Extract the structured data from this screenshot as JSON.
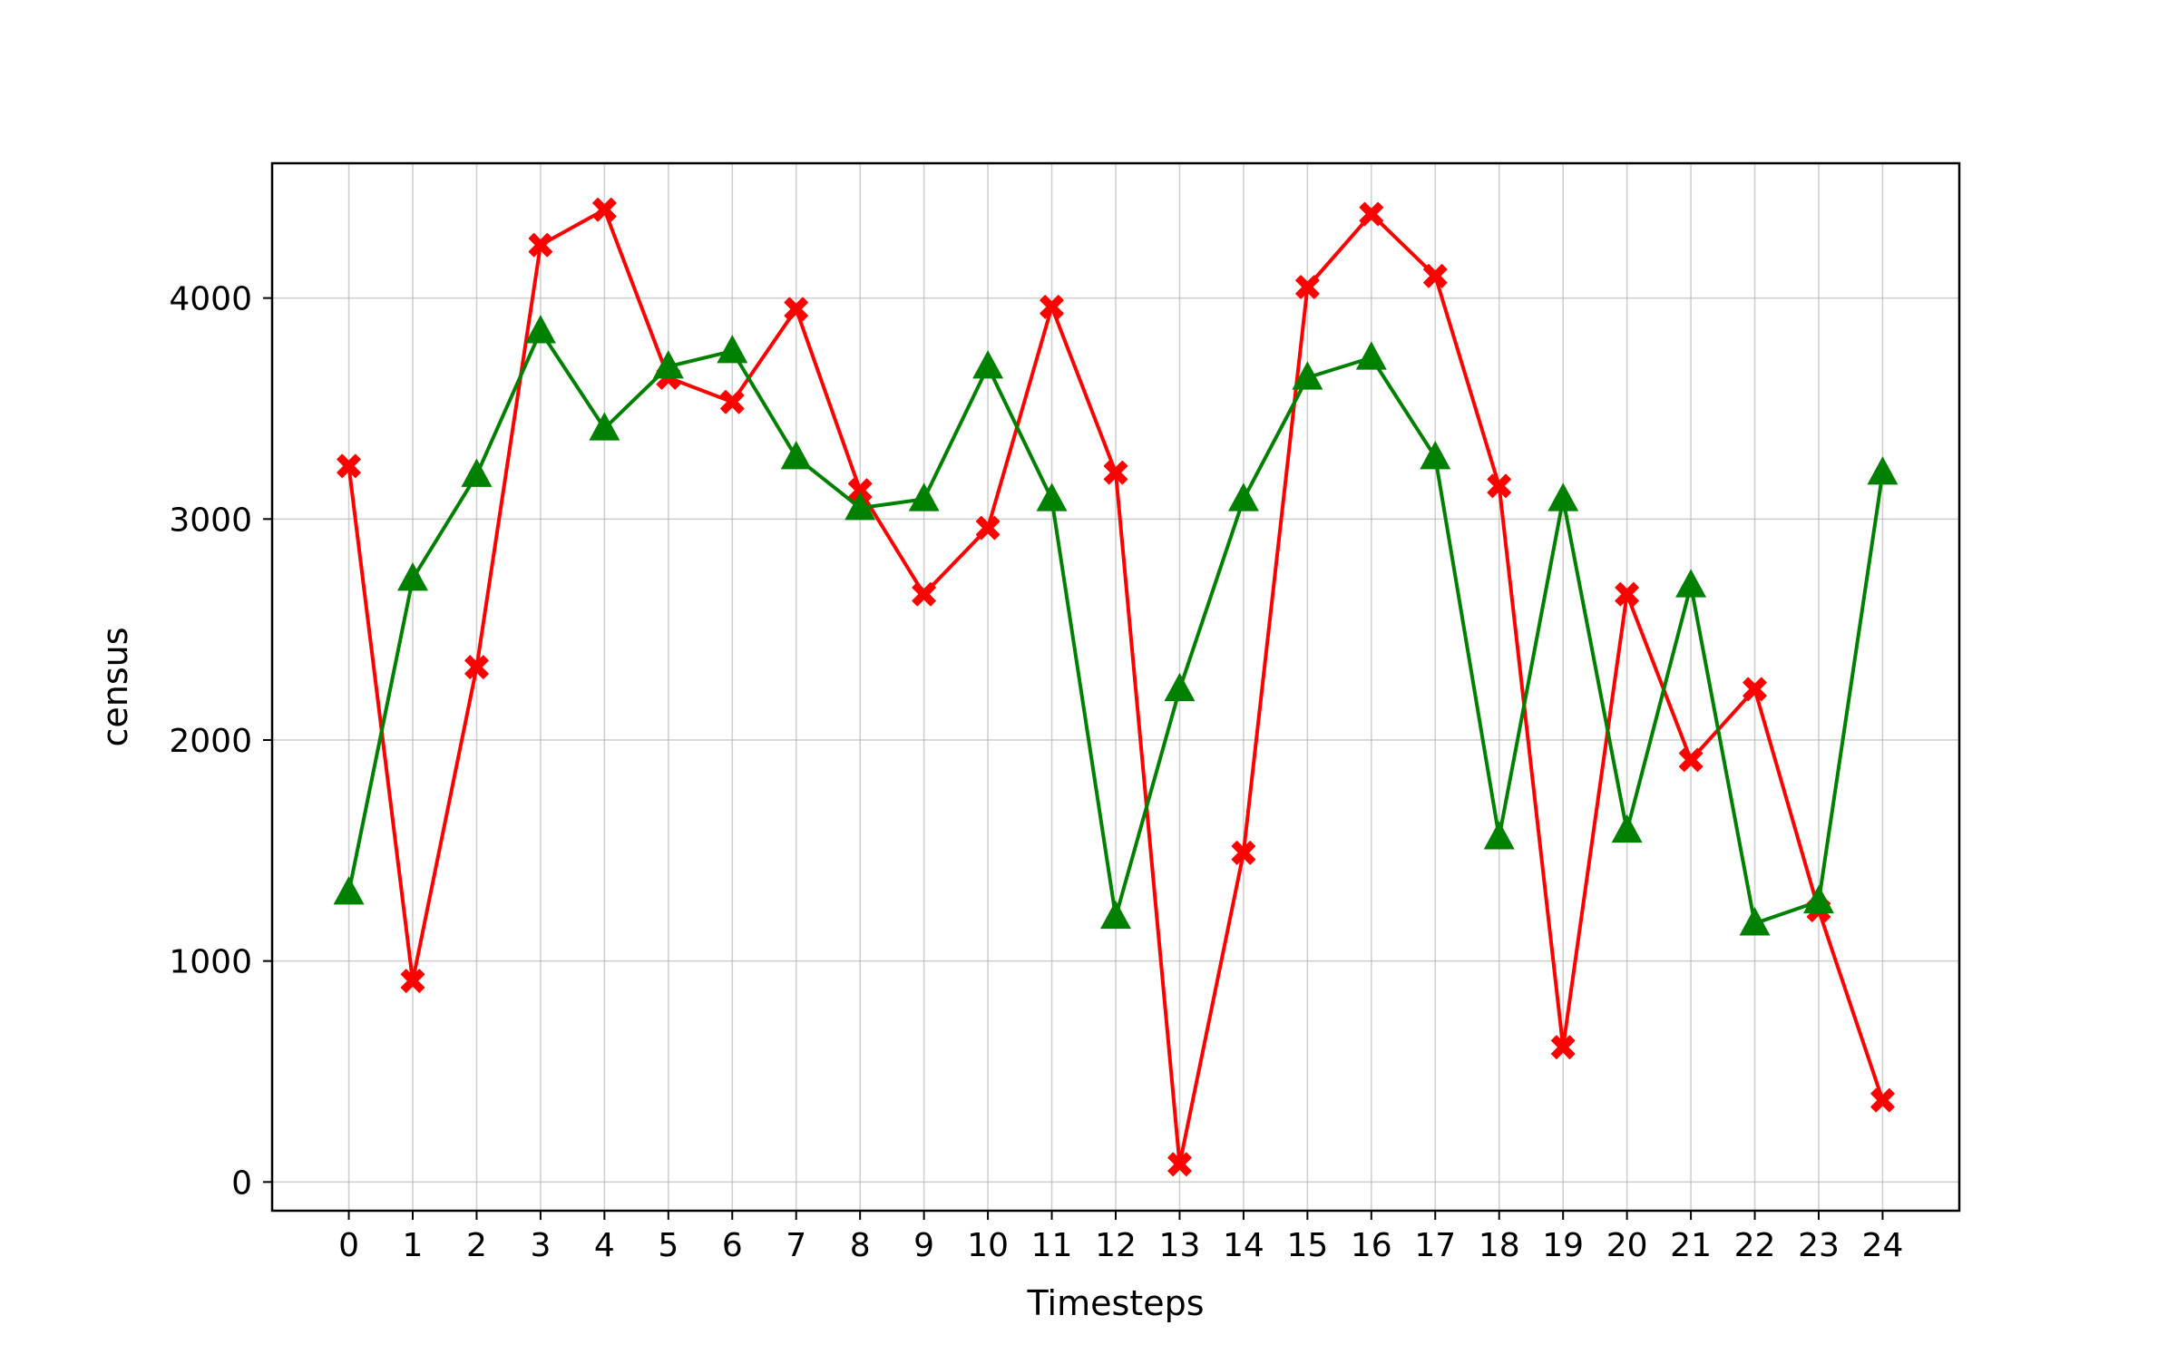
{
  "chart_data": {
    "type": "line",
    "title": "",
    "xlabel": "Timesteps",
    "ylabel": "census",
    "x": [
      0,
      1,
      2,
      3,
      4,
      5,
      6,
      7,
      8,
      9,
      10,
      11,
      12,
      13,
      14,
      15,
      16,
      17,
      18,
      19,
      20,
      21,
      22,
      23,
      24
    ],
    "xlim": [
      -1.2,
      25.2
    ],
    "ylim": [
      -130,
      4610
    ],
    "yticks": [
      0,
      1000,
      2000,
      3000,
      4000
    ],
    "grid": true,
    "series": [
      {
        "name": "red-x-series",
        "color": "#ff0000",
        "marker": "X",
        "values": [
          3240,
          910,
          2330,
          4240,
          4400,
          3640,
          3530,
          3950,
          3130,
          2660,
          2960,
          3960,
          3210,
          80,
          1490,
          4050,
          4380,
          4100,
          3150,
          610,
          2660,
          1910,
          2230,
          1230,
          370
        ]
      },
      {
        "name": "green-triangle-series",
        "color": "#008000",
        "marker": "triangle",
        "values": [
          1310,
          2730,
          3200,
          3850,
          3410,
          3690,
          3760,
          3280,
          3050,
          3090,
          3690,
          3090,
          1200,
          2230,
          3090,
          3640,
          3730,
          3280,
          1560,
          3090,
          1590,
          2700,
          1170,
          1270,
          3210
        ]
      }
    ]
  }
}
